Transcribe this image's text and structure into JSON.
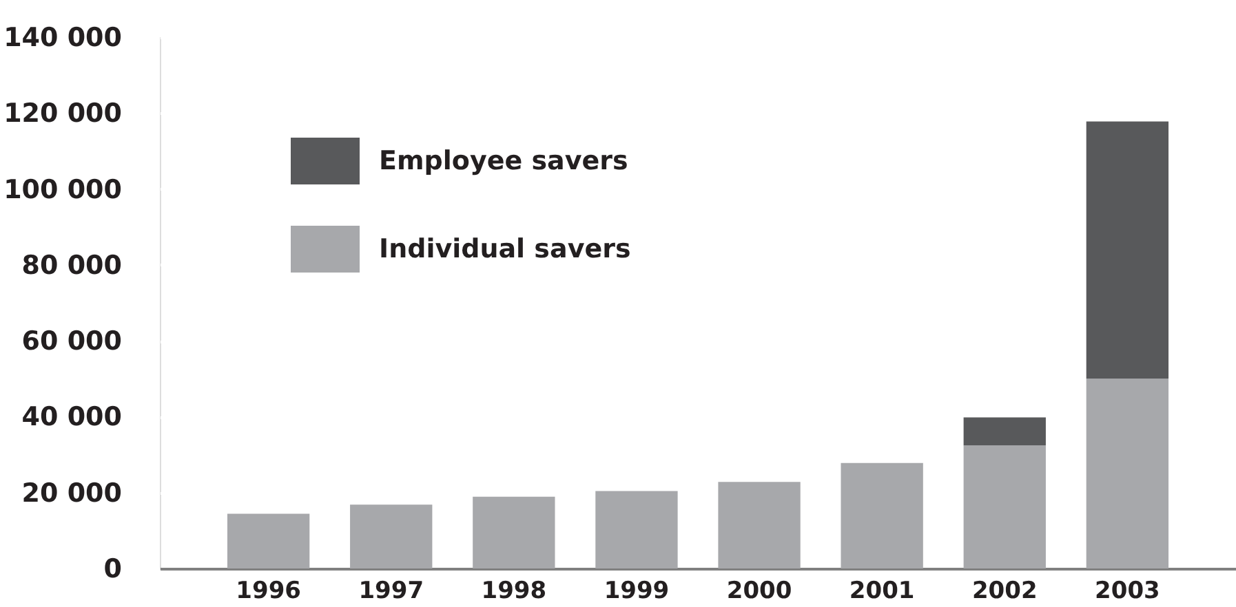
{
  "chart_data": {
    "type": "bar",
    "stacked": true,
    "categories": [
      "1996",
      "1997",
      "1998",
      "1999",
      "2000",
      "2001",
      "2002",
      "2003"
    ],
    "series": [
      {
        "name": "Individual savers",
        "color": "#a7a8ab",
        "values": [
          14400,
          16800,
          18900,
          20400,
          22800,
          27800,
          32400,
          50000
        ]
      },
      {
        "name": "Employee savers",
        "color": "#58595b",
        "values": [
          null,
          null,
          null,
          null,
          null,
          null,
          7400,
          67800
        ]
      }
    ],
    "ylim": [
      0,
      140000
    ],
    "yticks": [
      {
        "value": 0,
        "label": "0"
      },
      {
        "value": 20000,
        "label": "20 000"
      },
      {
        "value": 40000,
        "label": "40 000"
      },
      {
        "value": 60000,
        "label": "60 000"
      },
      {
        "value": 80000,
        "label": "80 000"
      },
      {
        "value": 100000,
        "label": "100 000"
      },
      {
        "value": 120000,
        "label": "120 000"
      },
      {
        "value": 140000,
        "label": "140 000"
      }
    ],
    "grid": "y",
    "legend": "top left"
  }
}
